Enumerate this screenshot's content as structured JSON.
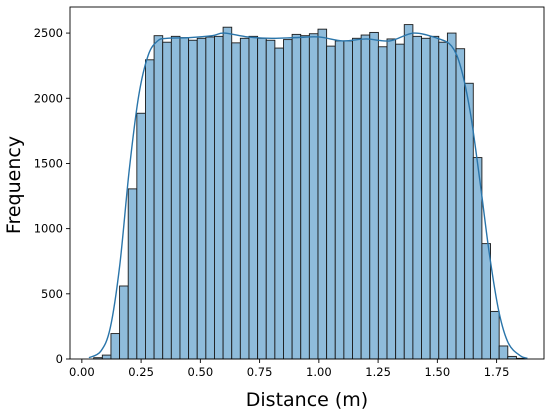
{
  "chart_data": {
    "type": "bar",
    "subtype": "histogram",
    "title": "",
    "xlabel": "Distance (m)",
    "ylabel": "Frequency",
    "xlim": [
      -0.05,
      1.95
    ],
    "ylim": [
      0,
      2700
    ],
    "xticks": [
      0.0,
      0.25,
      0.5,
      0.75,
      1.0,
      1.25,
      1.5,
      1.75
    ],
    "xtick_labels": [
      "0.00",
      "0.25",
      "0.50",
      "0.75",
      "1.00",
      "1.25",
      "1.50",
      "1.75"
    ],
    "yticks": [
      0,
      500,
      1000,
      1500,
      2000,
      2500
    ],
    "ytick_labels": [
      "0",
      "500",
      "1000",
      "1500",
      "2000",
      "2500"
    ],
    "bin_start": 0.05,
    "bin_width": 0.0364,
    "values": [
      10,
      30,
      195,
      560,
      1305,
      1885,
      2295,
      2480,
      2430,
      2475,
      2465,
      2445,
      2460,
      2470,
      2475,
      2545,
      2425,
      2460,
      2475,
      2460,
      2445,
      2385,
      2450,
      2490,
      2480,
      2495,
      2530,
      2400,
      2440,
      2440,
      2460,
      2485,
      2505,
      2395,
      2455,
      2415,
      2565,
      2475,
      2460,
      2475,
      2430,
      2500,
      2380,
      2115,
      1545,
      885,
      365,
      100,
      20,
      5
    ],
    "kde": {
      "x": [
        0.03,
        0.08,
        0.12,
        0.16,
        0.2,
        0.24,
        0.28,
        0.32,
        0.36,
        0.45,
        0.55,
        0.6,
        0.7,
        0.8,
        0.9,
        1.0,
        1.1,
        1.2,
        1.3,
        1.4,
        1.5,
        1.56,
        1.6,
        1.64,
        1.68,
        1.72,
        1.76,
        1.8,
        1.85,
        1.88
      ],
      "y": [
        10,
        60,
        240,
        720,
        1450,
        2020,
        2330,
        2440,
        2460,
        2465,
        2480,
        2500,
        2470,
        2460,
        2465,
        2470,
        2440,
        2455,
        2440,
        2500,
        2460,
        2400,
        2230,
        1880,
        1360,
        800,
        360,
        120,
        25,
        5
      ]
    },
    "colors": {
      "bar": "#8fbcdb",
      "edge": "#1a1a1a",
      "kde": "#2a75aa"
    },
    "grid": false,
    "legend": "none"
  }
}
